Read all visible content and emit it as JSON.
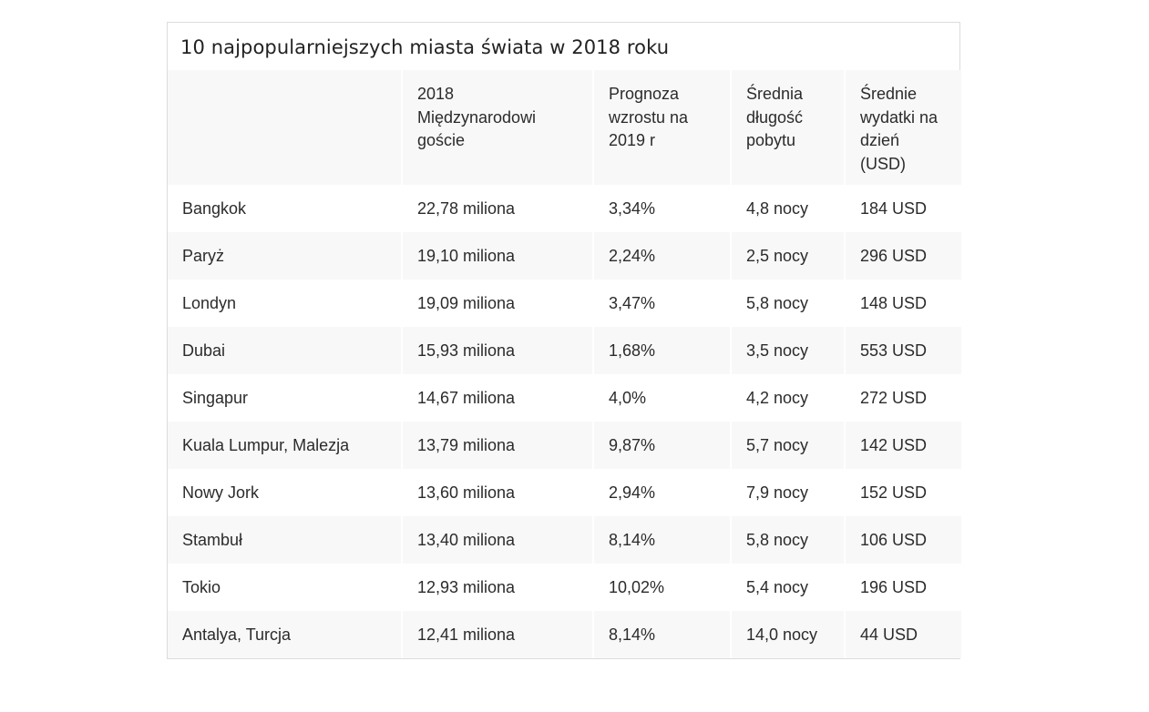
{
  "title": "10 najpopularniejszych miasta świata w 2018 roku",
  "headers": [
    {
      "lines": []
    },
    {
      "lines": [
        "2018",
        "Międzynarodowi",
        "goście"
      ]
    },
    {
      "lines": [
        "Prognoza",
        "wzrostu na",
        "2019 r"
      ]
    },
    {
      "lines": [
        "Średnia",
        "długość",
        "pobytu"
      ]
    },
    {
      "lines": [
        "Średnie",
        "wydatki na",
        "dzień",
        "(USD)"
      ]
    }
  ],
  "rows": [
    {
      "city": "Bangkok",
      "visitors": "22,78 miliona",
      "growth": "3,34%",
      "stay": "4,8 nocy",
      "spend": "184 USD"
    },
    {
      "city": "Paryż",
      "visitors": "19,10 miliona",
      "growth": "2,24%",
      "stay": "2,5 nocy",
      "spend": "296 USD"
    },
    {
      "city": "Londyn",
      "visitors": "19,09 miliona",
      "growth": "3,47%",
      "stay": "5,8 nocy",
      "spend": "148 USD"
    },
    {
      "city": "Dubai",
      "visitors": "15,93 miliona",
      "growth": "1,68%",
      "stay": "3,5 nocy",
      "spend": "553 USD"
    },
    {
      "city": "Singapur",
      "visitors": "14,67 miliona",
      "growth": "4,0%",
      "stay": "4,2 nocy",
      "spend": "272 USD"
    },
    {
      "city": "Kuala Lumpur, Malezja",
      "visitors": "13,79 miliona",
      "growth": "9,87%",
      "stay": "5,7 nocy",
      "spend": "142 USD"
    },
    {
      "city": "Nowy Jork",
      "visitors": "13,60 miliona",
      "growth": "2,94%",
      "stay": "7,9 nocy",
      "spend": "152 USD"
    },
    {
      "city": "Stambuł",
      "visitors": "13,40 miliona",
      "growth": "8,14%",
      "stay": "5,8 nocy",
      "spend": "106 USD"
    },
    {
      "city": "Tokio",
      "visitors": "12,93 miliona",
      "growth": "10,02%",
      "stay": "5,4 nocy",
      "spend": "196 USD"
    },
    {
      "city": "Antalya, Turcja",
      "visitors": "12,41 miliona",
      "growth": "8,14%",
      "stay": "14,0 nocy",
      "spend": "44 USD"
    }
  ]
}
